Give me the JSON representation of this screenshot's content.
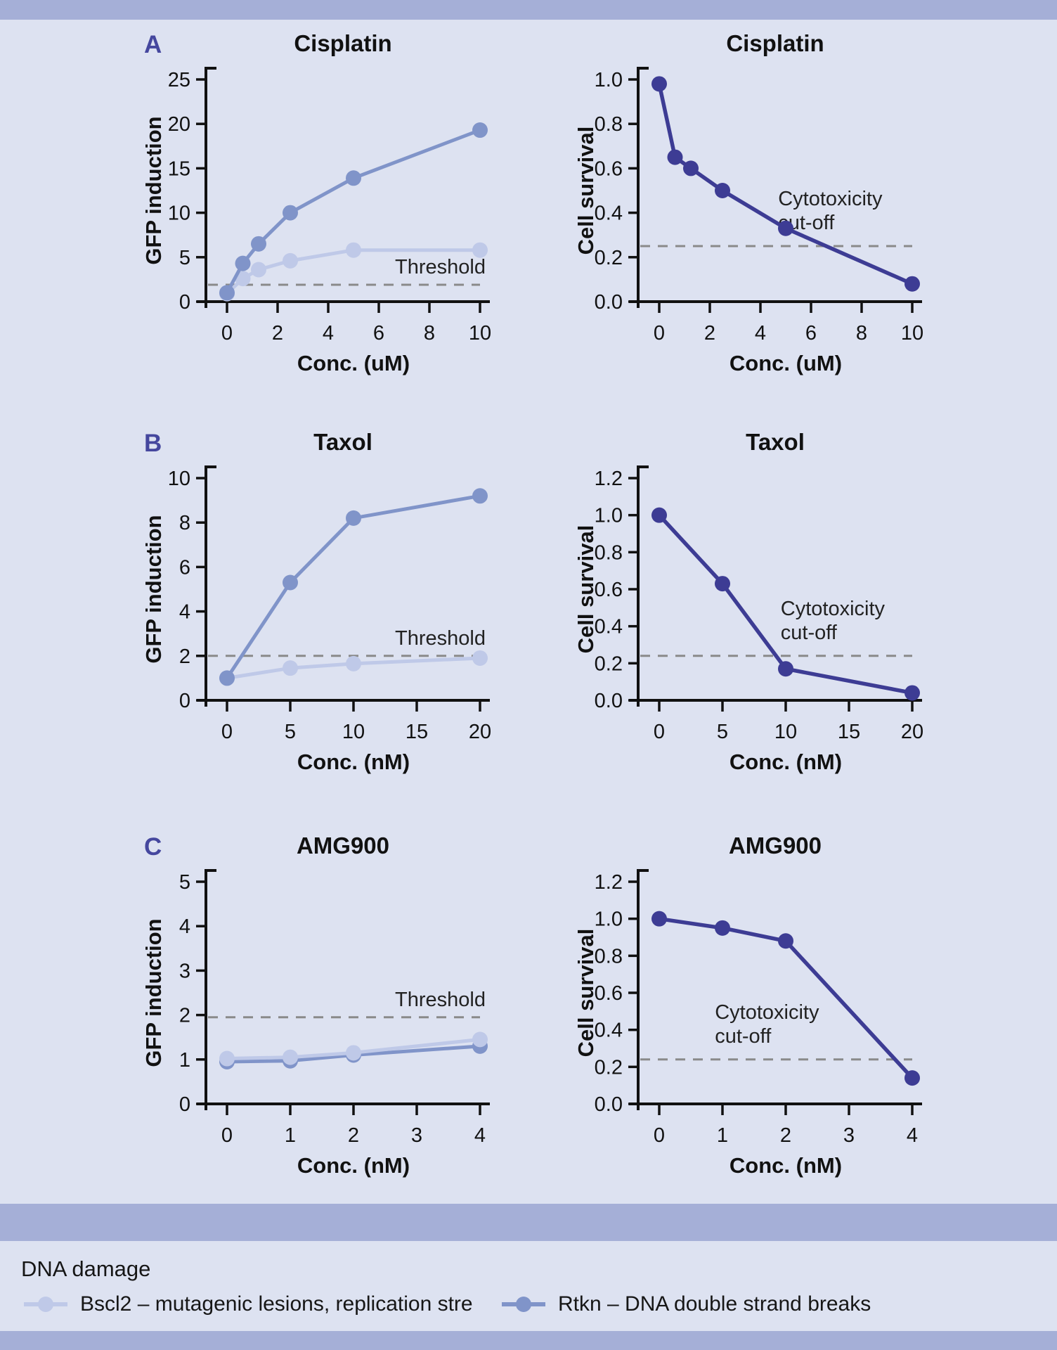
{
  "panels": [
    {
      "label": "A"
    },
    {
      "label": "B"
    },
    {
      "label": "C"
    }
  ],
  "colors": {
    "background": "#dde2f1",
    "band": "#a5afd7",
    "axis": "#111111",
    "text": "#161616",
    "panel_letter": "#45479e",
    "threshold": "#8a8a8a",
    "bscl2": "#bfc9e8",
    "rtkn": "#8094c9",
    "survival": "#3d3c94"
  },
  "legend": {
    "title": "DNA damage",
    "items": [
      {
        "name": "Bscl2",
        "label": "Bscl2 – mutagenic lesions, replication stre",
        "color_key": "bscl2"
      },
      {
        "name": "Rtkn",
        "label": "Rtkn – DNA double strand breaks",
        "color_key": "rtkn"
      }
    ]
  },
  "chart_data": [
    {
      "type": "line",
      "panel": "A",
      "side": "gfp",
      "title": "Cisplatin",
      "xlabel": "Conc. (uM)",
      "ylabel": "GFP induction",
      "xlim": [
        0,
        10
      ],
      "ylim": [
        0,
        25
      ],
      "xticks": [
        0,
        2,
        4,
        6,
        8,
        10
      ],
      "xtick_labels": [
        "0",
        "2",
        "4",
        "6",
        "8",
        "10"
      ],
      "yticks": [
        0,
        5,
        10,
        15,
        20,
        25
      ],
      "ytick_labels": [
        "0",
        "5",
        "10",
        "15",
        "20",
        "25"
      ],
      "grid": false,
      "threshold": {
        "value": 1.9,
        "label": "Threshold"
      },
      "series": [
        {
          "name": "Bscl2",
          "color_key": "bscl2",
          "x": [
            0,
            0.625,
            1.25,
            2.5,
            5,
            10
          ],
          "y": [
            0.9,
            2.6,
            3.6,
            4.6,
            5.8,
            5.8
          ]
        },
        {
          "name": "Rtkn",
          "color_key": "rtkn",
          "x": [
            0,
            0.625,
            1.25,
            2.5,
            5,
            10
          ],
          "y": [
            1.0,
            4.3,
            6.5,
            10.0,
            13.9,
            19.3
          ]
        }
      ]
    },
    {
      "type": "line",
      "panel": "A",
      "side": "survival",
      "title": "Cisplatin",
      "xlabel": "Conc. (uM)",
      "ylabel": "Cell survival",
      "xlim": [
        0,
        10
      ],
      "ylim": [
        0,
        1.0
      ],
      "xticks": [
        0,
        2,
        4,
        6,
        8,
        10
      ],
      "xtick_labels": [
        "0",
        "2",
        "4",
        "6",
        "8",
        "10"
      ],
      "yticks": [
        0,
        0.2,
        0.4,
        0.6,
        0.8,
        1.0
      ],
      "ytick_labels": [
        "0.0",
        "0.2",
        "0.4",
        "0.6",
        "0.8",
        "1.0"
      ],
      "grid": false,
      "threshold": {
        "value": 0.25,
        "label_lines": [
          "Cytotoxicity",
          "cut-off"
        ],
        "label_frac": 0.47
      },
      "series": [
        {
          "name": "survival",
          "color_key": "survival",
          "x": [
            0,
            0.625,
            1.25,
            2.5,
            5,
            10
          ],
          "y": [
            0.98,
            0.65,
            0.6,
            0.5,
            0.33,
            0.08
          ]
        }
      ]
    },
    {
      "type": "line",
      "panel": "B",
      "side": "gfp",
      "title": "Taxol",
      "xlabel": "Conc. (nM)",
      "ylabel": "GFP induction",
      "xlim": [
        0,
        20
      ],
      "ylim": [
        0,
        10
      ],
      "xticks": [
        0,
        5,
        10,
        15,
        20
      ],
      "xtick_labels": [
        "0",
        "5",
        "10",
        "15",
        "20"
      ],
      "yticks": [
        0,
        2,
        4,
        6,
        8,
        10
      ],
      "ytick_labels": [
        "0",
        "2",
        "4",
        "6",
        "8",
        "10"
      ],
      "grid": false,
      "threshold": {
        "value": 2.0,
        "label": "Threshold"
      },
      "series": [
        {
          "name": "Bscl2",
          "color_key": "bscl2",
          "x": [
            0,
            5,
            10,
            20
          ],
          "y": [
            1.0,
            1.45,
            1.65,
            1.9
          ]
        },
        {
          "name": "Rtkn",
          "color_key": "rtkn",
          "x": [
            0,
            5,
            10,
            20
          ],
          "y": [
            1.0,
            5.3,
            8.2,
            9.2
          ]
        }
      ]
    },
    {
      "type": "line",
      "panel": "B",
      "side": "survival",
      "title": "Taxol",
      "xlabel": "Conc. (nM)",
      "ylabel": "Cell survival",
      "xlim": [
        0,
        20
      ],
      "ylim": [
        0,
        1.2
      ],
      "xticks": [
        0,
        5,
        10,
        15,
        20
      ],
      "xtick_labels": [
        "0",
        "5",
        "10",
        "15",
        "20"
      ],
      "yticks": [
        0,
        0.2,
        0.4,
        0.6,
        0.8,
        1.0,
        1.2
      ],
      "ytick_labels": [
        "0.0",
        "0.2",
        "0.4",
        "0.6",
        "0.8",
        "1.0",
        "1.2"
      ],
      "grid": false,
      "threshold": {
        "value": 0.24,
        "label_lines": [
          "Cytotoxicity",
          "cut-off"
        ],
        "label_frac": 0.48
      },
      "series": [
        {
          "name": "survival",
          "color_key": "survival",
          "x": [
            0,
            5,
            10,
            20
          ],
          "y": [
            1.0,
            0.63,
            0.17,
            0.04
          ]
        }
      ]
    },
    {
      "type": "line",
      "panel": "C",
      "side": "gfp",
      "title": "AMG900",
      "xlabel": "Conc. (nM)",
      "ylabel": "GFP induction",
      "xlim": [
        0,
        4
      ],
      "ylim": [
        0,
        5
      ],
      "xticks": [
        0,
        1,
        2,
        3,
        4
      ],
      "xtick_labels": [
        "0",
        "1",
        "2",
        "3",
        "4"
      ],
      "yticks": [
        0,
        1,
        2,
        3,
        4,
        5
      ],
      "ytick_labels": [
        "0",
        "1",
        "2",
        "3",
        "4",
        "5"
      ],
      "grid": false,
      "threshold": {
        "value": 1.95,
        "label": "Threshold"
      },
      "series": [
        {
          "name": "Rtkn",
          "color_key": "rtkn",
          "x": [
            0,
            1,
            2,
            4
          ],
          "y": [
            0.95,
            0.97,
            1.1,
            1.3
          ]
        },
        {
          "name": "Bscl2",
          "color_key": "bscl2",
          "x": [
            0,
            1,
            2,
            4
          ],
          "y": [
            1.02,
            1.05,
            1.15,
            1.45
          ]
        }
      ]
    },
    {
      "type": "line",
      "panel": "C",
      "side": "survival",
      "title": "AMG900",
      "xlabel": "Conc. (nM)",
      "ylabel": "Cell survival",
      "xlim": [
        0,
        4
      ],
      "ylim": [
        0,
        1.2
      ],
      "xticks": [
        0,
        1,
        2,
        3,
        4
      ],
      "xtick_labels": [
        "0",
        "1",
        "2",
        "3",
        "4"
      ],
      "yticks": [
        0,
        0.2,
        0.4,
        0.6,
        0.8,
        1.0,
        1.2
      ],
      "ytick_labels": [
        "0.0",
        "0.2",
        "0.4",
        "0.6",
        "0.8",
        "1.0",
        "1.2"
      ],
      "grid": false,
      "threshold": {
        "value": 0.24,
        "label_lines": [
          "Cytotoxicity",
          "cut-off"
        ],
        "label_frac": 0.22
      },
      "series": [
        {
          "name": "survival",
          "color_key": "survival",
          "x": [
            0,
            1,
            2,
            4
          ],
          "y": [
            1.0,
            0.95,
            0.88,
            0.14
          ]
        }
      ]
    }
  ]
}
